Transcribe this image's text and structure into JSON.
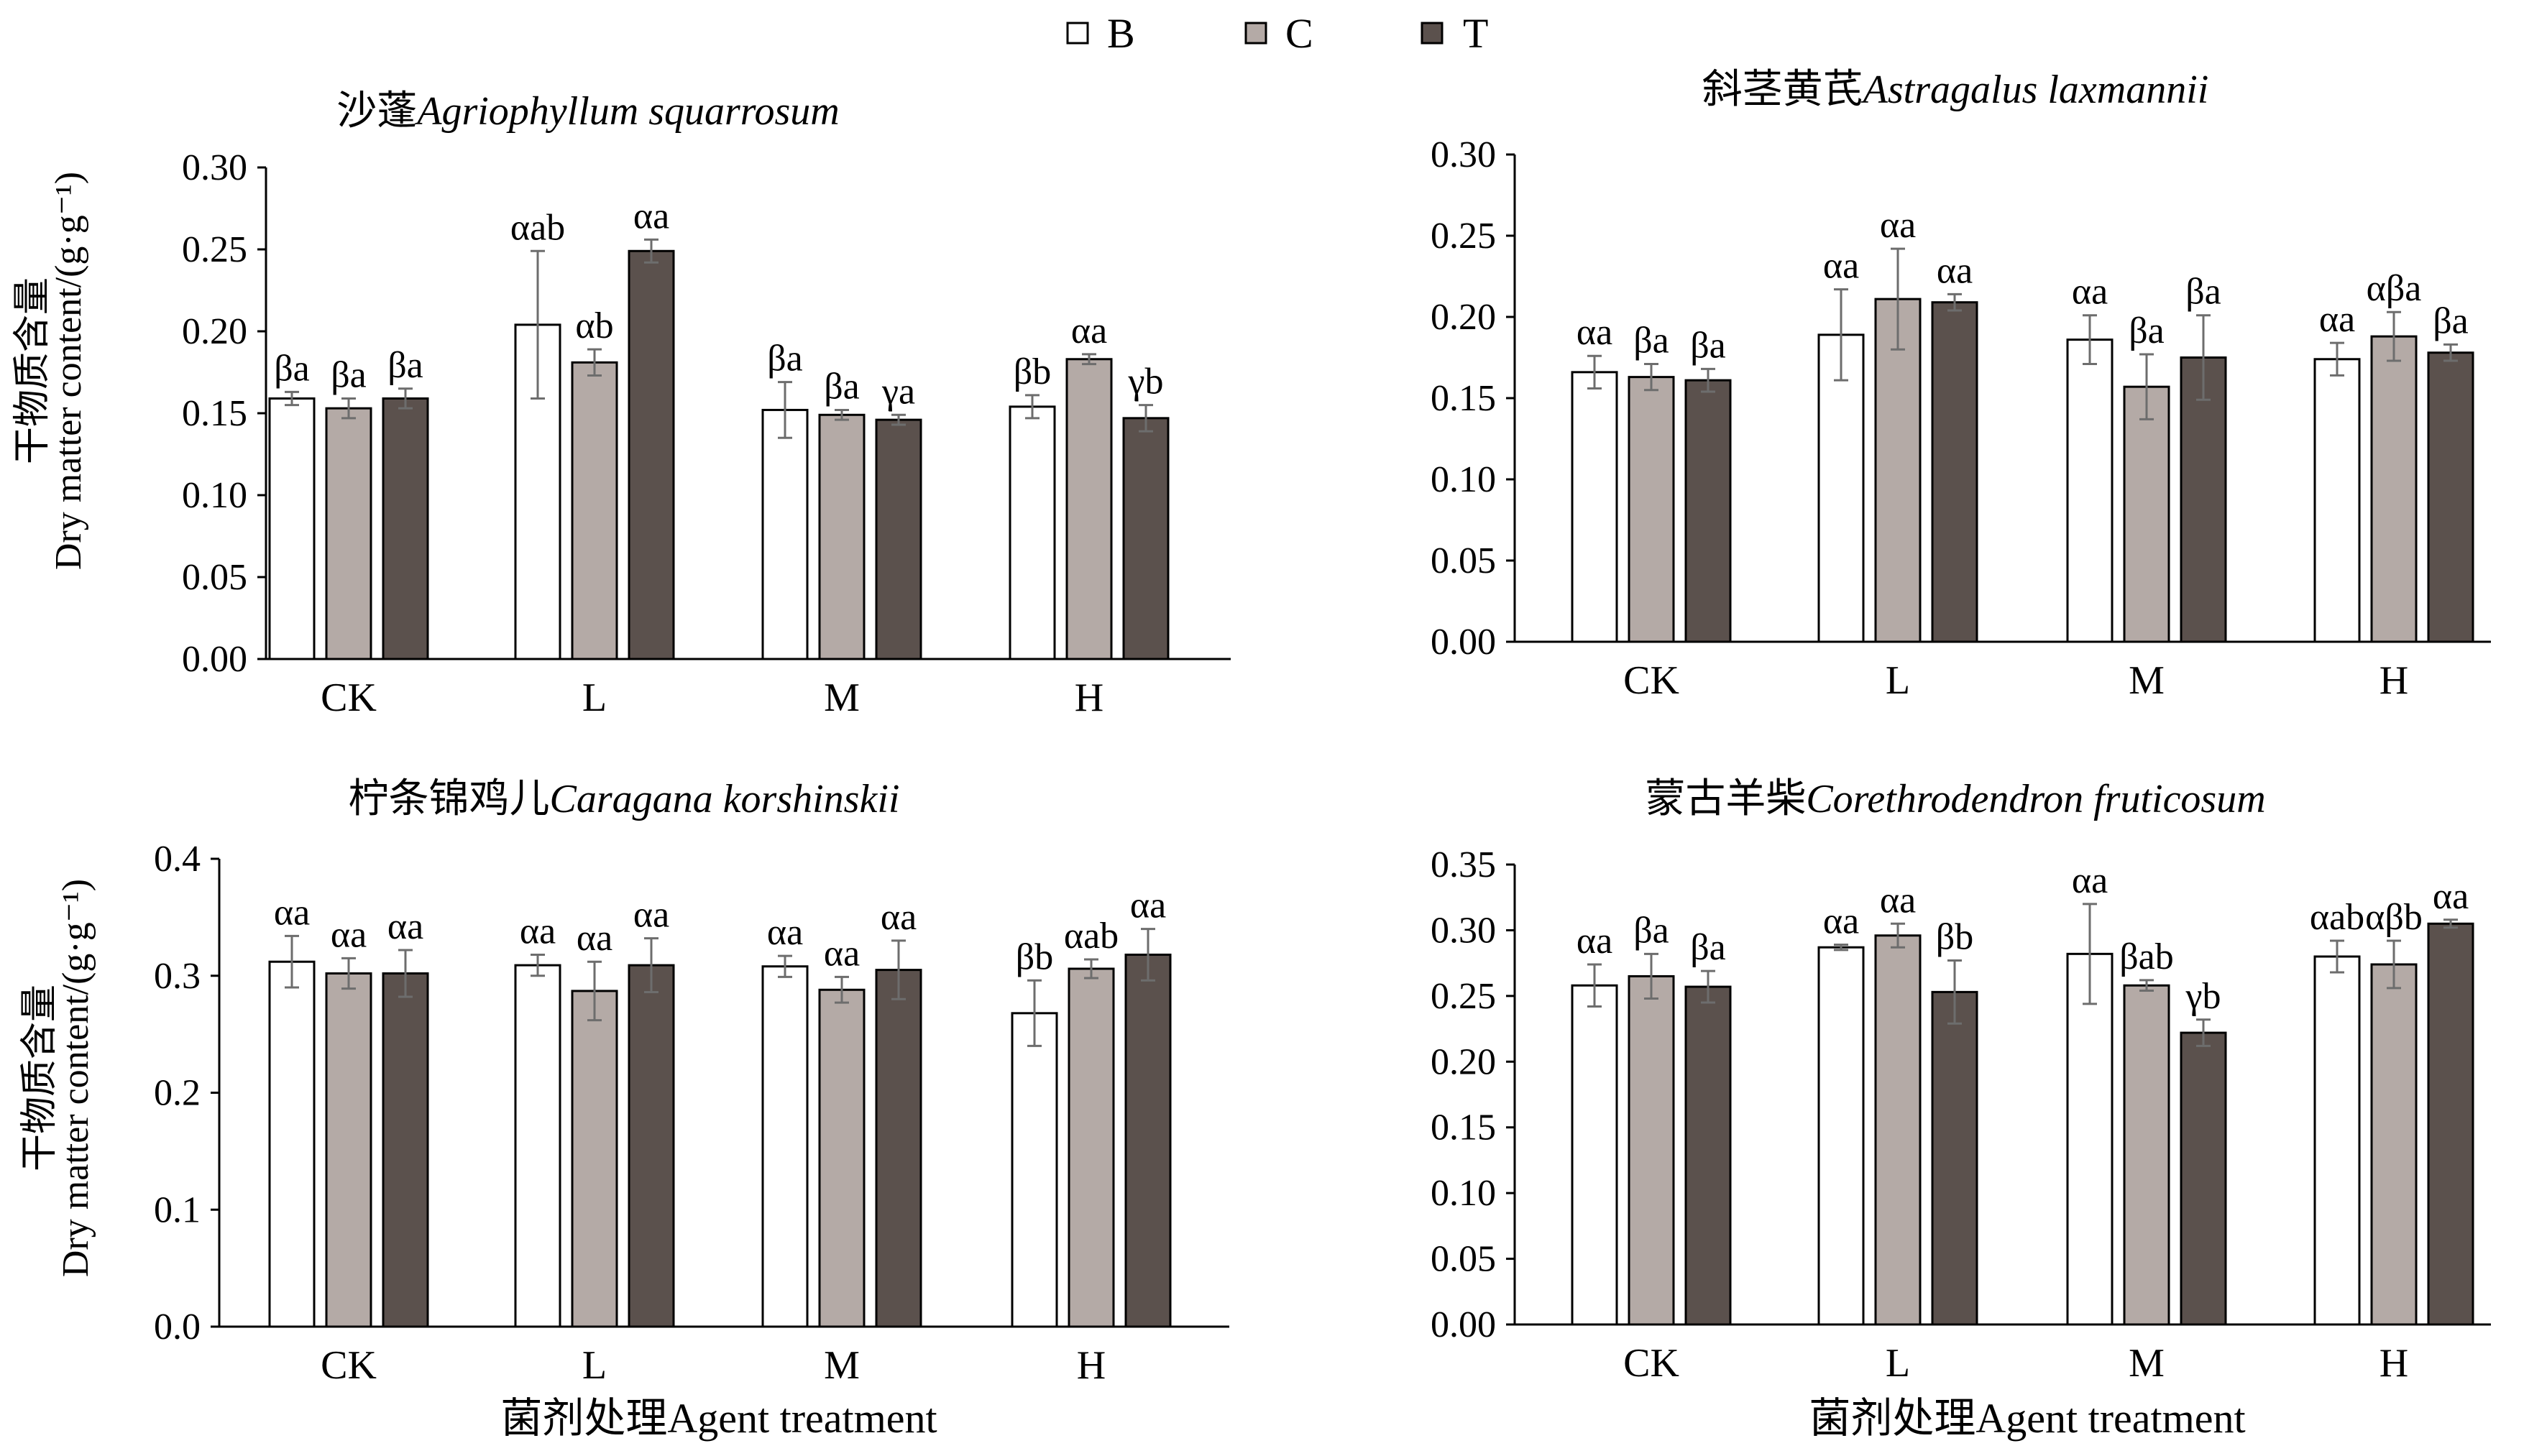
{
  "legend": [
    {
      "name": "B",
      "color": "#ffffff"
    },
    {
      "name": "C",
      "color": "#b4aaa6"
    },
    {
      "name": "T",
      "color": "#5b514d"
    }
  ],
  "y_label_cn": "干物质含量",
  "y_label_en": "Dry matter content/(g·g⁻¹)",
  "x_label": "菌剂处理Agent treatment",
  "chart_data": [
    {
      "type": "bar",
      "title_cn": "沙蓬",
      "title_en": "Agriophyllum squarrosum",
      "categories": [
        "CK",
        "L",
        "M",
        "H"
      ],
      "ylim": [
        0,
        0.3
      ],
      "yticks": [
        "0.00",
        "0.05",
        "0.10",
        "0.15",
        "0.20",
        "0.25",
        "0.30"
      ],
      "series": [
        {
          "name": "B",
          "values": [
            0.159,
            0.204,
            0.152,
            0.154
          ],
          "errors": [
            0.004,
            0.045,
            0.017,
            0.007
          ],
          "labels": [
            "βa",
            "αab",
            "βa",
            "βb"
          ]
        },
        {
          "name": "C",
          "values": [
            0.153,
            0.181,
            0.149,
            0.183
          ],
          "errors": [
            0.006,
            0.008,
            0.003,
            0.003
          ],
          "labels": [
            "βa",
            "αb",
            "βa",
            "αa"
          ]
        },
        {
          "name": "T",
          "values": [
            0.159,
            0.249,
            0.146,
            0.147
          ],
          "errors": [
            0.006,
            0.007,
            0.003,
            0.008
          ],
          "labels": [
            "βa",
            "αa",
            "γa",
            "γb"
          ]
        }
      ]
    },
    {
      "type": "bar",
      "title_cn": "斜茎黄芪",
      "title_en": "Astragalus laxmannii",
      "categories": [
        "CK",
        "L",
        "M",
        "H"
      ],
      "ylim": [
        0,
        0.3
      ],
      "yticks": [
        "0.00",
        "0.05",
        "0.10",
        "0.15",
        "0.20",
        "0.25",
        "0.30"
      ],
      "series": [
        {
          "name": "B",
          "values": [
            0.166,
            0.189,
            0.186,
            0.174
          ],
          "errors": [
            0.01,
            0.028,
            0.015,
            0.01
          ],
          "labels": [
            "αa",
            "αa",
            "αa",
            "αa"
          ]
        },
        {
          "name": "C",
          "values": [
            0.163,
            0.211,
            0.157,
            0.188
          ],
          "errors": [
            0.008,
            0.031,
            0.02,
            0.015
          ],
          "labels": [
            "βa",
            "αa",
            "βa",
            "αβa"
          ]
        },
        {
          "name": "T",
          "values": [
            0.161,
            0.209,
            0.175,
            0.178
          ],
          "errors": [
            0.007,
            0.005,
            0.026,
            0.005
          ],
          "labels": [
            "βa",
            "αa",
            "βa",
            "βa"
          ]
        }
      ]
    },
    {
      "type": "bar",
      "title_cn": "柠条锦鸡儿",
      "title_en": "Caragana korshinskii",
      "categories": [
        "CK",
        "L",
        "M",
        "H"
      ],
      "ylim": [
        0,
        0.4
      ],
      "yticks": [
        "0.0",
        "0.1",
        "0.2",
        "0.3",
        "0.4"
      ],
      "series": [
        {
          "name": "B",
          "values": [
            0.312,
            0.309,
            0.308,
            0.268
          ],
          "errors": [
            0.022,
            0.009,
            0.009,
            0.028
          ],
          "labels": [
            "αa",
            "αa",
            "αa",
            "βb"
          ]
        },
        {
          "name": "C",
          "values": [
            0.302,
            0.287,
            0.288,
            0.306
          ],
          "errors": [
            0.013,
            0.025,
            0.011,
            0.008
          ],
          "labels": [
            "αa",
            "αa",
            "αa",
            "αab"
          ]
        },
        {
          "name": "T",
          "values": [
            0.302,
            0.309,
            0.305,
            0.318
          ],
          "errors": [
            0.02,
            0.023,
            0.025,
            0.022
          ],
          "labels": [
            "αa",
            "αa",
            "αa",
            "αa"
          ]
        }
      ]
    },
    {
      "type": "bar",
      "title_cn": "蒙古羊柴",
      "title_en": "Corethrodendron fruticosum",
      "categories": [
        "CK",
        "L",
        "M",
        "H"
      ],
      "ylim": [
        0,
        0.35
      ],
      "yticks": [
        "0.00",
        "0.05",
        "0.10",
        "0.15",
        "0.20",
        "0.25",
        "0.30",
        "0.35"
      ],
      "series": [
        {
          "name": "B",
          "values": [
            0.258,
            0.287,
            0.282,
            0.28
          ],
          "errors": [
            0.016,
            0.002,
            0.038,
            0.012
          ],
          "labels": [
            "αa",
            "αa",
            "αa",
            "αab"
          ]
        },
        {
          "name": "C",
          "values": [
            0.265,
            0.296,
            0.258,
            0.274
          ],
          "errors": [
            0.017,
            0.009,
            0.004,
            0.018
          ],
          "labels": [
            "βa",
            "αa",
            "βab",
            "αβb"
          ]
        },
        {
          "name": "T",
          "values": [
            0.257,
            0.253,
            0.222,
            0.305
          ],
          "errors": [
            0.012,
            0.024,
            0.01,
            0.003
          ],
          "labels": [
            "βa",
            "βb",
            "γb",
            "αa"
          ]
        }
      ]
    }
  ]
}
